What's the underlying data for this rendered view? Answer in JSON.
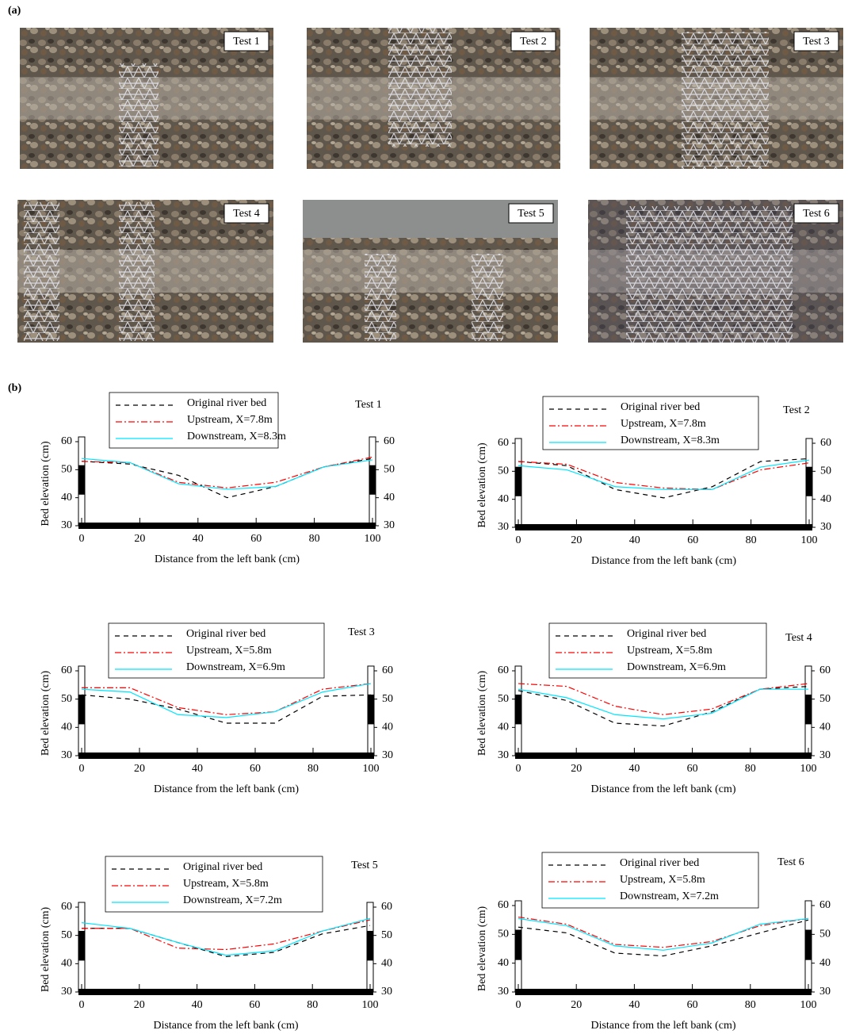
{
  "panel_a": {
    "label": "(a)",
    "photos": [
      "Test 1",
      "Test 2",
      "Test 3",
      "Test 4",
      "Test 5",
      "Test 6"
    ]
  },
  "panel_b": {
    "label": "(b)"
  },
  "chart_data": [
    {
      "type": "line",
      "title": "Test 1",
      "xlabel": "Distance from the left bank (cm)",
      "ylabel": "Bed elevation (cm)",
      "x": [
        0,
        16.7,
        33.3,
        50,
        66.7,
        83.3,
        100
      ],
      "xlim": [
        0,
        100
      ],
      "xticks": [
        0,
        20,
        40,
        60,
        80,
        100
      ],
      "ylim": [
        30,
        60
      ],
      "yticks": [
        30,
        40,
        50,
        60
      ],
      "y2lim": [
        30,
        60
      ],
      "y2ticks": [
        30,
        40,
        50,
        60
      ],
      "series": [
        {
          "name": "Original river bed",
          "color": "#000000",
          "line_style": "dashed",
          "values": [
            53,
            52,
            48,
            40,
            44,
            51,
            54
          ]
        },
        {
          "name": "Upstream, X=7.8m",
          "color": "#ff0000",
          "line_style": "dashdot",
          "values": [
            53,
            52.5,
            45.5,
            43.5,
            45.5,
            51,
            54.5
          ]
        },
        {
          "name": "Downstream, X=8.3m",
          "color": "#00e5ff",
          "line_style": "solid",
          "values": [
            54,
            52.5,
            45,
            43,
            44,
            51,
            53.5
          ]
        }
      ]
    },
    {
      "type": "line",
      "title": "Test 2",
      "xlabel": "Distance from the left bank (cm)",
      "ylabel": "Bed elevation (cm)",
      "x": [
        0,
        16.7,
        33.3,
        50,
        66.7,
        83.3,
        100
      ],
      "xlim": [
        0,
        100
      ],
      "xticks": [
        0,
        20,
        40,
        60,
        80,
        100
      ],
      "ylim": [
        30,
        60
      ],
      "yticks": [
        30,
        40,
        50,
        60
      ],
      "y2lim": [
        30,
        60
      ],
      "y2ticks": [
        30,
        40,
        50,
        60
      ],
      "series": [
        {
          "name": "Original river bed",
          "color": "#000000",
          "line_style": "dashed",
          "values": [
            53.5,
            52,
            43.5,
            40.5,
            44.5,
            53.5,
            54.5
          ]
        },
        {
          "name": "Upstream, X=7.8m",
          "color": "#ff0000",
          "line_style": "dashdot",
          "values": [
            53.5,
            52.5,
            46,
            44,
            43.5,
            50.5,
            53
          ]
        },
        {
          "name": "Downstream, X=8.3m",
          "color": "#00e5ff",
          "line_style": "solid",
          "values": [
            52,
            50.5,
            44.5,
            43.5,
            43.5,
            51.5,
            54
          ]
        }
      ]
    },
    {
      "type": "line",
      "title": "Test 3",
      "xlabel": "Distance from the left bank (cm)",
      "ylabel": "Bed elevation (cm)",
      "x": [
        0,
        16.7,
        33.3,
        50,
        66.7,
        83.3,
        100
      ],
      "xlim": [
        0,
        100
      ],
      "xticks": [
        0,
        20,
        40,
        60,
        80,
        100
      ],
      "ylim": [
        30,
        60
      ],
      "yticks": [
        30,
        40,
        50,
        60
      ],
      "y2lim": [
        30,
        60
      ],
      "y2ticks": [
        30,
        40,
        50,
        60
      ],
      "series": [
        {
          "name": "Original river bed",
          "color": "#000000",
          "line_style": "dashed",
          "values": [
            51.5,
            50,
            46.5,
            41.5,
            41.5,
            51,
            51.5
          ]
        },
        {
          "name": "Upstream, X=5.8m",
          "color": "#ff0000",
          "line_style": "dashdot",
          "values": [
            54,
            54,
            47,
            44.5,
            45.5,
            53.5,
            55.5
          ]
        },
        {
          "name": "Downstream, X=6.9m",
          "color": "#00e5ff",
          "line_style": "solid",
          "values": [
            53.5,
            52.5,
            44.5,
            43.5,
            45.5,
            52.5,
            55.5
          ]
        }
      ]
    },
    {
      "type": "line",
      "title": "Test 4",
      "xlabel": "Distance from the left bank (cm)",
      "ylabel": "Bed elevation (cm)",
      "x": [
        0,
        16.7,
        33.3,
        50,
        66.7,
        83.3,
        100
      ],
      "xlim": [
        0,
        100
      ],
      "xticks": [
        0,
        20,
        40,
        60,
        80,
        100
      ],
      "ylim": [
        30,
        60
      ],
      "yticks": [
        30,
        40,
        50,
        60
      ],
      "y2lim": [
        30,
        60
      ],
      "y2ticks": [
        30,
        40,
        50,
        60
      ],
      "series": [
        {
          "name": "Original river bed",
          "color": "#000000",
          "line_style": "dashed",
          "values": [
            53,
            49.5,
            41.5,
            40.5,
            45.5,
            53.5,
            54.5
          ]
        },
        {
          "name": "Upstream, X=5.8m",
          "color": "#ff0000",
          "line_style": "dashdot",
          "values": [
            55.5,
            54.5,
            47.5,
            44.5,
            46.5,
            53.5,
            55.5
          ]
        },
        {
          "name": "Downstream, X=6.9m",
          "color": "#00e5ff",
          "line_style": "solid",
          "values": [
            53.5,
            50.5,
            44.5,
            43,
            45,
            53.5,
            53.5
          ]
        }
      ]
    },
    {
      "type": "line",
      "title": "Test 5",
      "xlabel": "Distance from the left bank (cm)",
      "ylabel": "Bed elevation (cm)",
      "x": [
        0,
        16.7,
        33.3,
        50,
        66.7,
        83.3,
        100
      ],
      "xlim": [
        0,
        100
      ],
      "xticks": [
        0,
        20,
        40,
        60,
        80,
        100
      ],
      "ylim": [
        30,
        60
      ],
      "yticks": [
        30,
        40,
        50,
        60
      ],
      "y2lim": [
        30,
        60
      ],
      "y2ticks": [
        30,
        40,
        50,
        60
      ],
      "series": [
        {
          "name": "Original river bed",
          "color": "#000000",
          "line_style": "dashed",
          "values": [
            52.5,
            52.5,
            47.5,
            42.5,
            44,
            50.5,
            53.5
          ]
        },
        {
          "name": "Upstream, X=5.8m",
          "color": "#ff0000",
          "line_style": "dashdot",
          "values": [
            52.5,
            52.5,
            45.5,
            45,
            47,
            51.5,
            55.5
          ]
        },
        {
          "name": "Downstream, X=7.2m",
          "color": "#00e5ff",
          "line_style": "solid",
          "values": [
            54.5,
            52.5,
            47.5,
            43,
            44.5,
            51.5,
            56
          ]
        }
      ]
    },
    {
      "type": "line",
      "title": "Test 6",
      "xlabel": "Distance from the left bank (cm)",
      "ylabel": "Bed elevation (cm)",
      "x": [
        0,
        16.7,
        33.3,
        50,
        66.7,
        83.3,
        100
      ],
      "xlim": [
        0,
        100
      ],
      "xticks": [
        0,
        20,
        40,
        60,
        80,
        100
      ],
      "ylim": [
        30,
        60
      ],
      "yticks": [
        30,
        40,
        50,
        60
      ],
      "y2lim": [
        30,
        60
      ],
      "y2ticks": [
        30,
        40,
        50,
        60
      ],
      "series": [
        {
          "name": "Original river bed",
          "color": "#000000",
          "line_style": "dashed",
          "values": [
            52.5,
            50.5,
            43.5,
            42.5,
            46,
            50.5,
            55
          ]
        },
        {
          "name": "Upstream, X=5.8m",
          "color": "#ff0000",
          "line_style": "dashdot",
          "values": [
            56,
            53.5,
            46.5,
            45.5,
            47.5,
            53,
            55.5
          ]
        },
        {
          "name": "Downstream, X=7.2m",
          "color": "#00e5ff",
          "line_style": "solid",
          "values": [
            55.5,
            53,
            46,
            44.5,
            47,
            53.5,
            55.5
          ]
        }
      ]
    }
  ]
}
